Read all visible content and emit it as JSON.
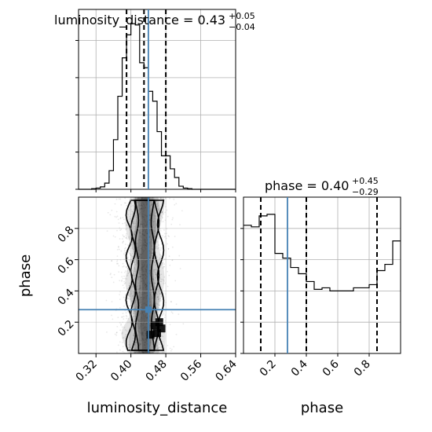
{
  "chart_data": [
    {
      "type": "histogram",
      "panel": "luminosity_distance_marginal",
      "title": {
        "param": "luminosity_distance",
        "median": "0.43",
        "plus": "+0.05",
        "minus": "−0.04"
      },
      "xlim": [
        0.28,
        0.64
      ],
      "bins": {
        "edges": [
          0.28,
          0.29,
          0.3,
          0.31,
          0.32,
          0.33,
          0.34,
          0.35,
          0.36,
          0.37,
          0.38,
          0.39,
          0.4,
          0.41,
          0.42,
          0.43,
          0.44,
          0.45,
          0.46,
          0.47,
          0.48,
          0.49,
          0.5,
          0.51,
          0.52,
          0.53,
          0.54,
          0.55,
          0.56,
          0.57,
          0.58,
          0.59,
          0.6,
          0.61,
          0.62,
          0.63,
          0.64
        ],
        "counts": [
          0,
          0,
          0,
          1,
          2,
          4,
          10,
          30,
          80,
          150,
          212,
          249,
          267,
          265,
          204,
          196,
          158,
          142,
          93,
          54,
          54,
          33,
          19,
          5,
          2,
          1,
          0,
          0,
          0,
          0,
          0,
          0,
          0,
          0,
          0,
          0
        ]
      },
      "quantiles": [
        0.39,
        0.43,
        0.48
      ],
      "truth": 0.44
    },
    {
      "type": "histogram",
      "panel": "phase_marginal",
      "title": {
        "param": "phase",
        "median": "0.40",
        "plus": "+0.45",
        "minus": "−0.29"
      },
      "xlim": [
        0.0,
        1.0
      ],
      "xticks": [
        "0.2",
        "0.4",
        "0.6",
        "0.8"
      ],
      "xlabel": "phase",
      "bins": {
        "edges": [
          0.0,
          0.05,
          0.1,
          0.15,
          0.2,
          0.25,
          0.3,
          0.35,
          0.4,
          0.45,
          0.5,
          0.55,
          0.6,
          0.65,
          0.7,
          0.75,
          0.8,
          0.85,
          0.9,
          0.95,
          1.0
        ],
        "counts": [
          82,
          81,
          88,
          89,
          64,
          61,
          55,
          51,
          46,
          41,
          42,
          40,
          40,
          40,
          42,
          42,
          44,
          53,
          57,
          72
        ]
      },
      "quantiles": [
        0.11,
        0.4,
        0.85
      ],
      "truth": 0.28
    },
    {
      "type": "scatter_density",
      "panel": "luminosity_distance_vs_phase",
      "xlabel": "luminosity_distance",
      "ylabel": "phase",
      "xlim": [
        0.28,
        0.64
      ],
      "ylim": [
        0.0,
        1.0
      ],
      "xticks": [
        "0.32",
        "0.40",
        "0.48",
        "0.56",
        "0.64"
      ],
      "yticks": [
        "0.2",
        "0.4",
        "0.6",
        "0.8"
      ],
      "truth": {
        "x": 0.44,
        "y": 0.28
      },
      "density_peak": {
        "x": 0.46,
        "y": 0.15
      }
    }
  ],
  "colors": {
    "truth": "#4682b4",
    "line": "#000000",
    "grid": "#b0b0b0"
  }
}
